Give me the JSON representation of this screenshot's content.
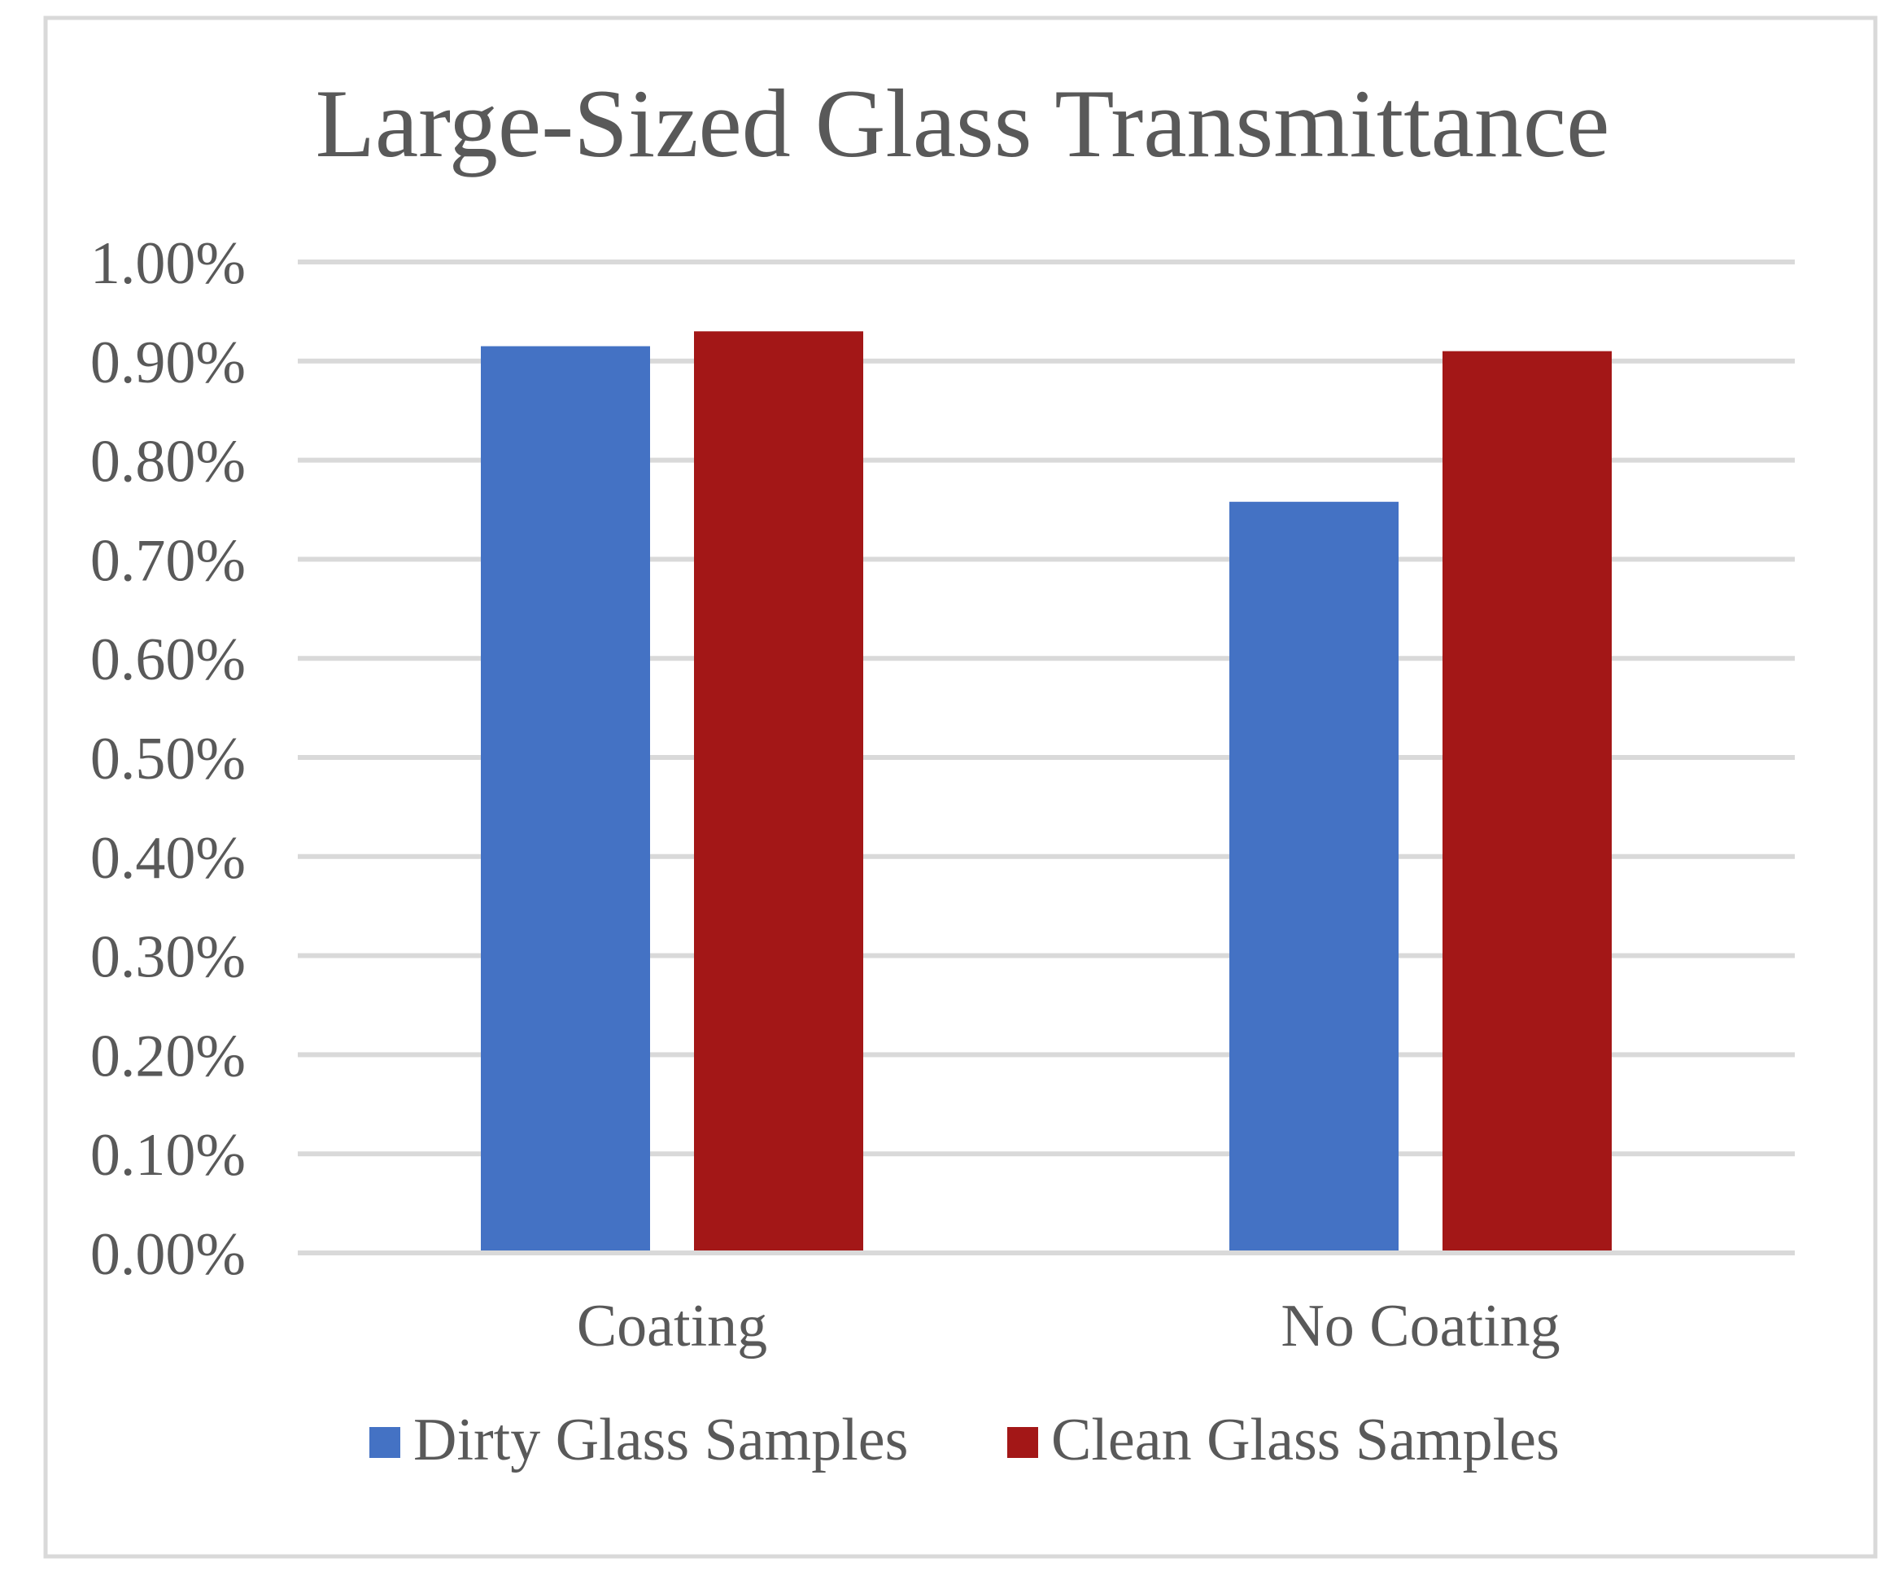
{
  "chart_data": {
    "type": "bar",
    "title": "Large-Sized Glass Transmittance",
    "xlabel": "",
    "ylabel": "",
    "categories": [
      "Coating",
      "No Coating"
    ],
    "series": [
      {
        "name": "Dirty Glass Samples",
        "color": "#4472c4",
        "values": [
          0.915,
          0.758
        ]
      },
      {
        "name": "Clean Glass Samples",
        "color": "#a31717",
        "values": [
          0.93,
          0.91
        ]
      }
    ],
    "ylim": [
      0,
      1.0
    ],
    "yticks": [
      "0.00%",
      "0.10%",
      "0.20%",
      "0.30%",
      "0.40%",
      "0.50%",
      "0.60%",
      "0.70%",
      "0.80%",
      "0.90%",
      "1.00%"
    ],
    "grid": true,
    "legend_position": "bottom",
    "frame_color": "#d9d9d9"
  }
}
